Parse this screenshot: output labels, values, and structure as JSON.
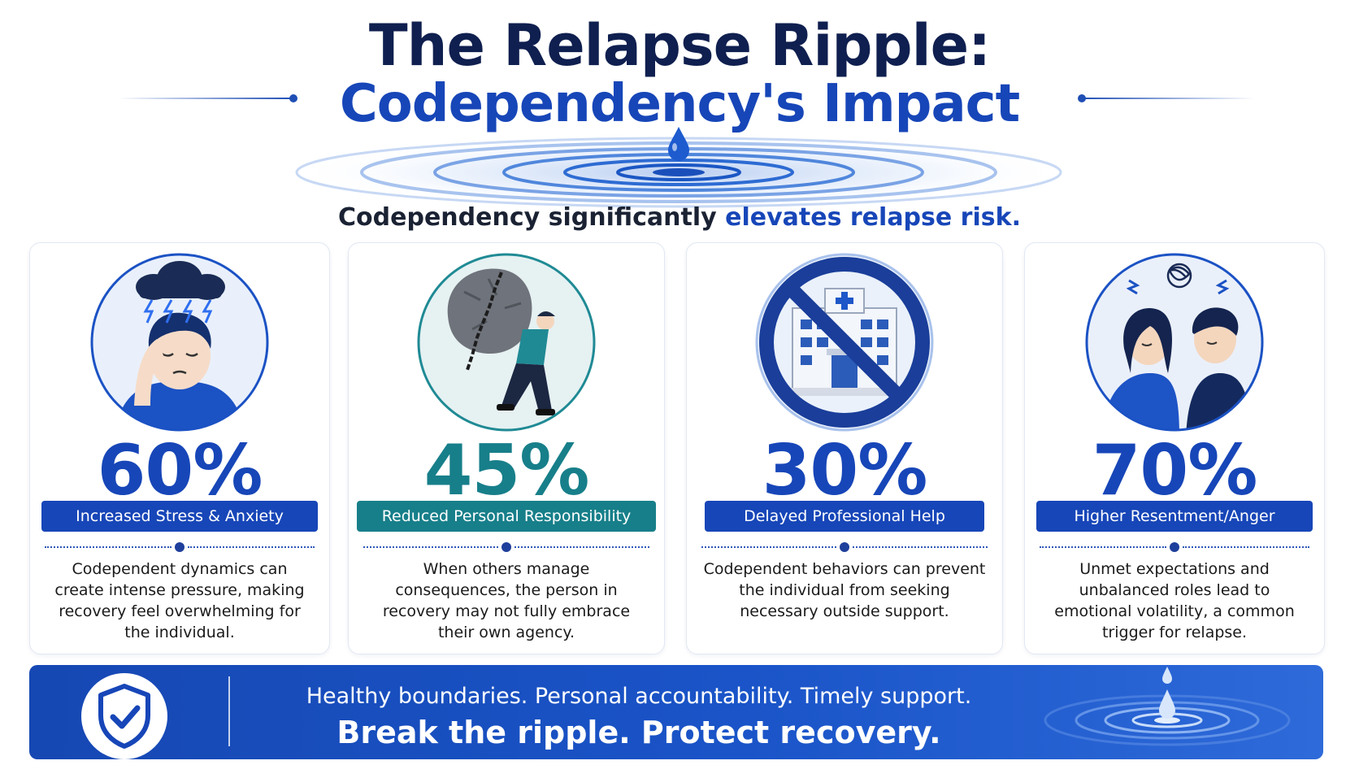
{
  "header": {
    "title_line1": "The Relapse Ripple:",
    "title_line2": "Codependency's Impact",
    "subtitle_part1": "Codependency significantly ",
    "subtitle_highlight": "elevates relapse risk."
  },
  "cards": [
    {
      "percent": "60%",
      "label": "Increased Stress & Anxiety",
      "description": "Codependent dynamics can create intense pressure, making recovery feel overwhelming for the individual.",
      "accent": "#1746b8",
      "icon": "stressed-person-storm-cloud-icon"
    },
    {
      "percent": "45%",
      "label": "Reduced Personal Responsibility",
      "description": "When others manage consequences, the person in recovery may not fully embrace their own agency.",
      "accent": "#177f8a",
      "icon": "person-carrying-boulder-icon"
    },
    {
      "percent": "30%",
      "label": "Delayed Professional Help",
      "description": "Codependent behaviors can prevent the individual from seeking necessary outside support.",
      "accent": "#1746b8",
      "icon": "no-hospital-icon"
    },
    {
      "percent": "70%",
      "label": "Higher Resentment/Anger",
      "description": "Unmet expectations and unbalanced roles lead to emotional volatility, a common trigger for relapse.",
      "accent": "#1746b8",
      "icon": "angry-couple-icon"
    }
  ],
  "banner": {
    "line1": "Healthy boundaries. Personal accountability. Timely support.",
    "line2": "Break the ripple. Protect recovery.",
    "icon": "shield-check-icon"
  },
  "colors": {
    "navy": "#0f1f4f",
    "primary_blue": "#1746b8",
    "teal": "#177f8a"
  }
}
